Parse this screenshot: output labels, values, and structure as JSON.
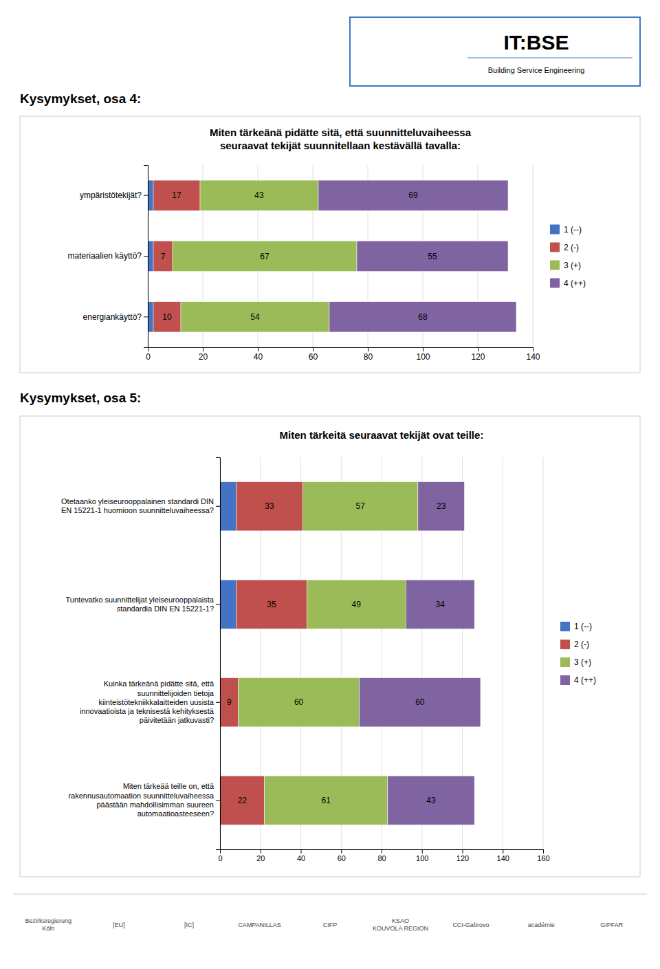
{
  "chart_data": [
    {
      "type": "bar",
      "orientation": "horizontal",
      "stacked": true,
      "data_labels": true,
      "grid": true,
      "title": "Miten tärkeänä pidätte sitä, että suunnitteluvaiheessa\nseuraavat tekijät suunnitellaan kestävällä tavalla:",
      "annotations": [
        "Kysymykset, osa 4:",
        "IT:BSE",
        "Building Service Engineering"
      ],
      "categories": [
        "ympäristötekijät?",
        "materiaalien käyttö?",
        "energiankäyttö?"
      ],
      "series": [
        {
          "name": "1 (--)",
          "color": "#4472C4",
          "values": [
            2,
            2,
            2
          ],
          "value_labels": [
            null,
            null,
            null
          ]
        },
        {
          "name": "2 (-)",
          "color": "#C0504D",
          "values": [
            17,
            7,
            10
          ],
          "value_labels": [
            "17",
            "7",
            "10"
          ]
        },
        {
          "name": "3 (+)",
          "color": "#9BBB59",
          "values": [
            43,
            67,
            54
          ],
          "value_labels": [
            "43",
            "67",
            "54"
          ]
        },
        {
          "name": "4 (++)",
          "color": "#8064A2",
          "values": [
            69,
            55,
            68
          ],
          "value_labels": [
            "69",
            "55",
            "68"
          ]
        }
      ],
      "xlim": [
        0,
        140
      ],
      "xticks": [
        0,
        20,
        40,
        60,
        80,
        100,
        120,
        140
      ]
    },
    {
      "type": "bar",
      "orientation": "horizontal",
      "stacked": true,
      "data_labels": true,
      "grid": true,
      "title": "Miten tärkeitä seuraavat tekijät ovat teille:",
      "annotations": [
        "Kysymykset, osa 5:",
        "Bezirksregierung\nKöln",
        "[EU]",
        "[IC]",
        "CAMPANILLAS",
        "CIFP",
        "KSAO\nKOUVOLA REGION",
        "CCI-Gabrovo",
        "académie",
        "GIPFAR"
      ],
      "categories": [
        "Otetaanko yleiseurooppalainen standardi DIN\nEN 15221-1 huomioon suunnitteluvaiheessa?",
        "Tuntevatko suunnittelijat yleiseurooppalaista\nstandardia DIN EN 15221-1?",
        "Kuinka tärkeänä pidätte sitä, että\nsuunnittelijoiden tietoja\nkiinteistötekniikkalaitteiden uusista\ninnovaatioista ja teknisestä kehityksestä\npäivitetään jatkuvasti?",
        "Miten tärkeää teille on, että\nrakennusautomaation suunnitteluvaiheessa\npäästään mahdollisimman suureen\nautomaatioasteeseen?"
      ],
      "series": [
        {
          "name": "1 (--)",
          "color": "#4472C4",
          "values": [
            8,
            8,
            0,
            0
          ],
          "value_labels": [
            null,
            null,
            null,
            null
          ]
        },
        {
          "name": "2 (-)",
          "color": "#C0504D",
          "values": [
            33,
            35,
            9,
            22
          ],
          "value_labels": [
            "33",
            "35",
            "9",
            "22"
          ]
        },
        {
          "name": "3 (+)",
          "color": "#9BBB59",
          "values": [
            57,
            49,
            60,
            61
          ],
          "value_labels": [
            "57",
            "49",
            "60",
            "61"
          ]
        },
        {
          "name": "4 (++)",
          "color": "#8064A2",
          "values": [
            23,
            34,
            60,
            43
          ],
          "value_labels": [
            "23",
            "34",
            "60",
            "43"
          ]
        }
      ],
      "xlim": [
        0,
        160
      ],
      "xticks": [
        0,
        20,
        40,
        60,
        80,
        100,
        120,
        140,
        160
      ]
    }
  ]
}
